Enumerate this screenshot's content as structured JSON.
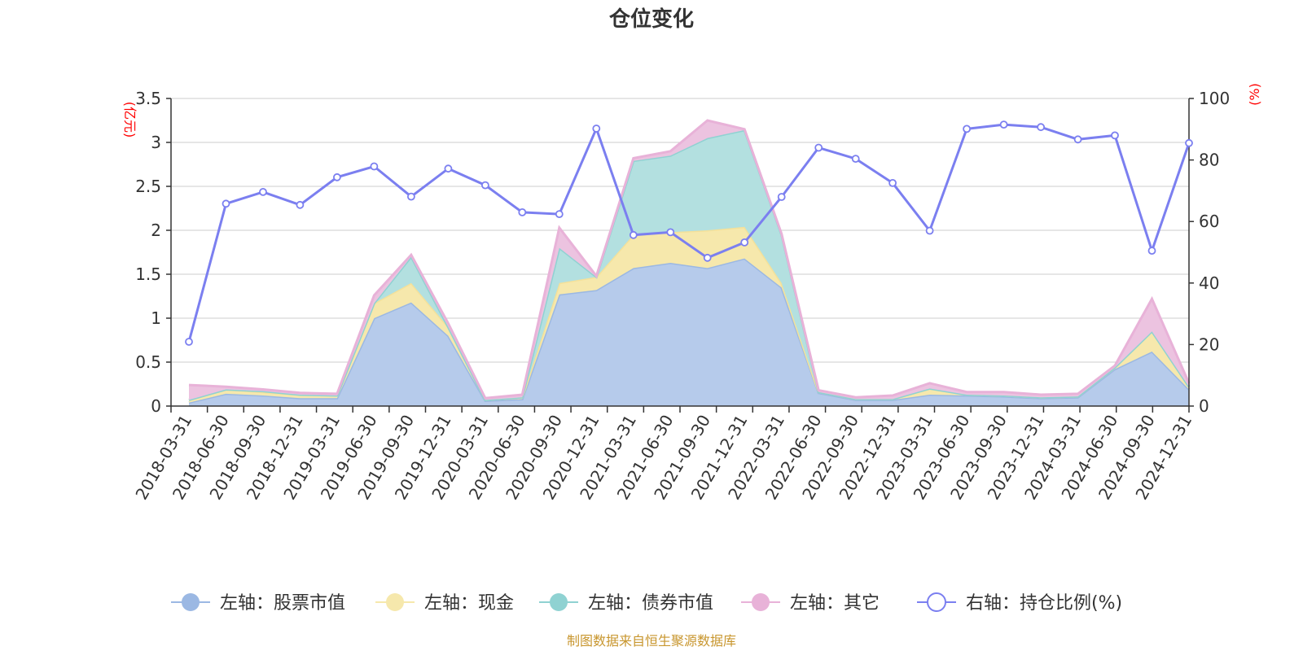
{
  "chart_data": {
    "type": "area",
    "title": "仓位变化",
    "left_axis_label": "(亿元)",
    "right_axis_label": "(%)",
    "left_ylim": [
      0,
      3.5
    ],
    "left_yticks": [
      "0",
      "0.5",
      "1",
      "1.5",
      "2",
      "2.5",
      "3",
      "3.5"
    ],
    "right_ylim": [
      0,
      100
    ],
    "right_yticks": [
      "0",
      "20",
      "40",
      "60",
      "80",
      "100"
    ],
    "grid": true,
    "legend_position": "bottom",
    "x": [
      "2018-03-31",
      "2018-06-30",
      "2018-09-30",
      "2018-12-31",
      "2019-03-31",
      "2019-06-30",
      "2019-09-30",
      "2019-12-31",
      "2020-03-31",
      "2020-06-30",
      "2020-09-30",
      "2020-12-31",
      "2021-03-31",
      "2021-06-30",
      "2021-09-30",
      "2021-12-31",
      "2022-03-31",
      "2022-06-30",
      "2022-09-30",
      "2022-12-31",
      "2023-03-31",
      "2023-06-30",
      "2023-09-30",
      "2023-12-31",
      "2024-03-31",
      "2024-06-30",
      "2024-09-30",
      "2024-12-31"
    ],
    "series": [
      {
        "name": "左轴：股票市值",
        "axis": "left",
        "stack": true,
        "color": "#9bb8e3",
        "fill": "#b6cbeb",
        "values": [
          0.04,
          0.14,
          0.12,
          0.09,
          0.09,
          1.0,
          1.18,
          0.8,
          0.06,
          0.08,
          1.27,
          1.32,
          1.57,
          1.63,
          1.57,
          1.68,
          1.35,
          0.15,
          0.07,
          0.07,
          0.13,
          0.12,
          0.11,
          0.09,
          0.1,
          0.42,
          0.62,
          0.19
        ]
      },
      {
        "name": "左轴：现金",
        "axis": "left",
        "stack": true,
        "color": "#f4e19a",
        "fill": "#f6e8ac",
        "values": [
          0.03,
          0.05,
          0.04,
          0.04,
          0.03,
          0.17,
          0.22,
          0.1,
          0.01,
          0.02,
          0.13,
          0.15,
          0.38,
          0.35,
          0.43,
          0.36,
          0.05,
          0.01,
          0.01,
          0.01,
          0.07,
          0.01,
          0.01,
          0.01,
          0.01,
          0.02,
          0.23,
          0.03
        ]
      },
      {
        "name": "左轴：债券市值",
        "axis": "left",
        "stack": true,
        "color": "#8fd2d2",
        "fill": "#b3e0e0",
        "values": [
          0.0,
          0.0,
          0.01,
          0.0,
          0.0,
          0.0,
          0.3,
          0.0,
          0.0,
          0.0,
          0.4,
          0.0,
          0.84,
          0.87,
          1.05,
          1.1,
          0.55,
          0.0,
          0.0,
          0.0,
          0.0,
          0.0,
          0.0,
          0.0,
          0.0,
          0.0,
          0.0,
          0.0
        ]
      },
      {
        "name": "左轴：其它",
        "axis": "left",
        "stack": true,
        "color": "#e8b2d8",
        "fill": "#ecc3e0",
        "values": [
          0.17,
          0.03,
          0.02,
          0.02,
          0.02,
          0.09,
          0.02,
          0.04,
          0.02,
          0.03,
          0.23,
          0.01,
          0.03,
          0.05,
          0.2,
          0.01,
          0.01,
          0.02,
          0.02,
          0.04,
          0.06,
          0.03,
          0.04,
          0.03,
          0.03,
          0.02,
          0.37,
          0.04
        ]
      },
      {
        "name": "右轴：持仓比例(%)",
        "axis": "right",
        "type": "line",
        "color": "#7b7ff0",
        "values": [
          20.9,
          65.8,
          69.6,
          65.4,
          74.4,
          77.9,
          68.1,
          77.2,
          71.8,
          63.0,
          62.4,
          90.2,
          55.6,
          56.5,
          48.2,
          53.2,
          68.0,
          84.0,
          80.4,
          72.5,
          57.0,
          90.1,
          91.5,
          90.7,
          86.7,
          88.0,
          50.5,
          85.5
        ]
      }
    ]
  },
  "legend": {
    "items": [
      {
        "label": "左轴：股票市值",
        "marker_color": "#9bb8e3",
        "hollow": false
      },
      {
        "label": "左轴：现金",
        "marker_color": "#f6e8ac",
        "hollow": false
      },
      {
        "label": "左轴：债券市值",
        "marker_color": "#8fd2d2",
        "hollow": false
      },
      {
        "label": "左轴：其它",
        "marker_color": "#e8b2d8",
        "hollow": false
      },
      {
        "label": "右轴：持仓比例(%)",
        "marker_color": "#7b7ff0",
        "hollow": true
      }
    ]
  },
  "source": "制图数据来自恒生聚源数据库"
}
